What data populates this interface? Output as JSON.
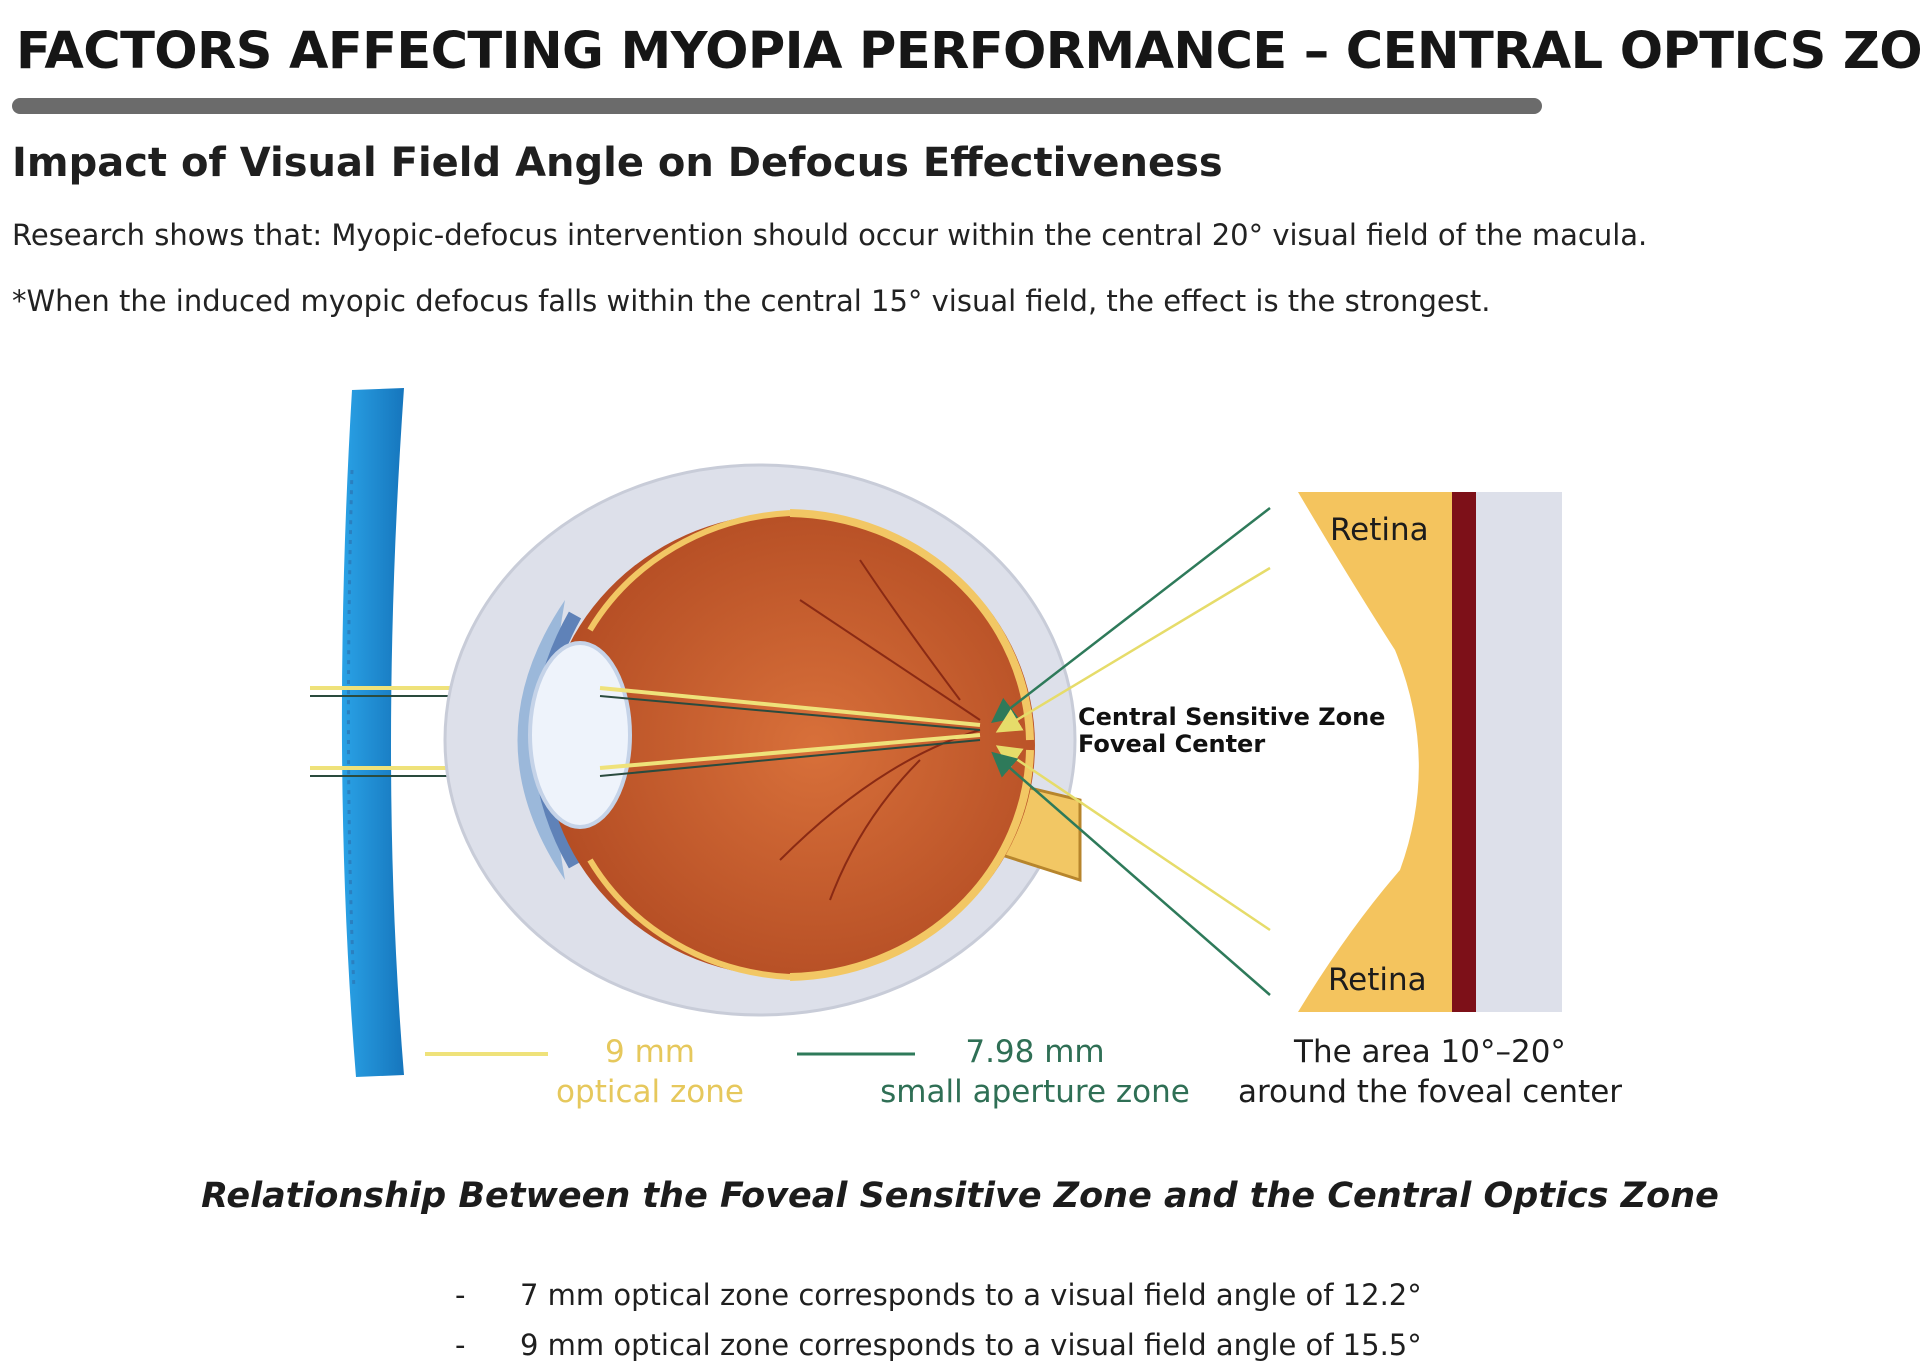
{
  "header": {
    "title": "FACTORS AFFECTING MYOPIA PERFORMANCE – CENTRAL OPTICS ZONE",
    "subtitle": "Impact of Visual Field Angle on Defocus Effectiveness",
    "research_line": "Research shows that: Myopic-defocus intervention should occur within the central 20° visual field of the macula.",
    "note_line": "*When the induced myopic defocus falls within the central 15° visual field, the effect is the strongest."
  },
  "diagram": {
    "central_zone_line1": "Central Sensitive Zone",
    "central_zone_line2": "Foveal Center",
    "retina_top": "Retina",
    "retina_bottom": "Retina",
    "legend": {
      "yellow_value": "9 mm",
      "yellow_label": "optical zone",
      "green_value": "7.98 mm",
      "green_label": "small aperture zone",
      "area_line1": "The area 10°–20°",
      "area_line2": "around the foveal center"
    },
    "colors": {
      "lens": "#1e8fd6",
      "optical_zone": "#efe27a",
      "aperture_zone": "#2e7a5a",
      "eyeball": "#c2582a",
      "retina": "#f4c45e",
      "choroid": "#7d1018"
    }
  },
  "relationship": {
    "heading": "Relationship Between the Foveal Sensitive Zone and the Central Optics Zone",
    "items": [
      "7 mm optical zone corresponds to a visual field angle of 12.2°",
      "9 mm optical zone corresponds to a visual field angle of 15.5°"
    ],
    "dash": "-"
  }
}
